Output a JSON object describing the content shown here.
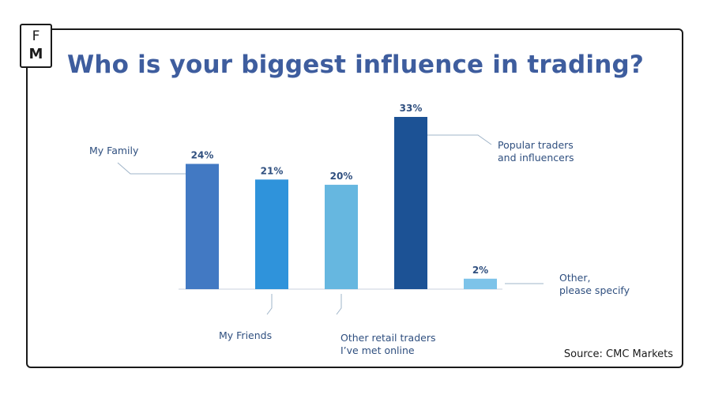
{
  "logo": {
    "line1": "F",
    "line2": "M"
  },
  "title": "Who is your biggest influence in trading?",
  "source": "Source: CMC Markets",
  "colors": {
    "title": "#3e5d9e",
    "labels": "#2f4f7f",
    "leader": "#9fb4c8",
    "baseline": "#c8d2dc"
  },
  "chart_data": {
    "type": "bar",
    "title": "Who is your biggest influence in trading?",
    "categories": [
      "My Family",
      "My Friends",
      "Other retail traders I’ve met online",
      "Popular traders and influencers",
      "Other, please specify"
    ],
    "values": [
      24,
      21,
      20,
      33,
      2
    ],
    "value_labels": [
      "24%",
      "21%",
      "20%",
      "33%",
      "2%"
    ],
    "label_lines": [
      [
        "My Family"
      ],
      [
        "My Friends"
      ],
      [
        "Other retail traders",
        "I’ve met online"
      ],
      [
        "Popular traders",
        "and influencers"
      ],
      [
        "Other,",
        "please specify"
      ]
    ],
    "colors": [
      "#4279c3",
      "#2f93db",
      "#66b7e0",
      "#1c5295",
      "#7dc3e9"
    ],
    "unit": "%",
    "ylim": [
      0,
      33
    ],
    "grid": false,
    "legend": "none"
  }
}
